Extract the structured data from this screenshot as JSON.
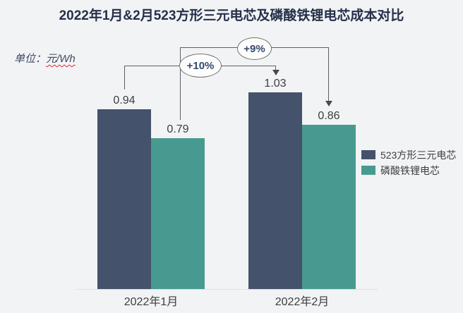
{
  "title": "2022年1月&2月523方形三元电芯及磷酸铁锂电芯成本对比",
  "unit": {
    "prefix": "单位：",
    "text": "元/Wh"
  },
  "chart_data": {
    "type": "bar",
    "title": "2022年1月&2月523方形三元电芯及磷酸铁锂电芯成本对比",
    "unit": "元/Wh",
    "categories": [
      "2022年1月",
      "2022年2月"
    ],
    "series": [
      {
        "name": "523方形三元电芯",
        "color": "#45526B",
        "values": [
          0.94,
          1.03
        ]
      },
      {
        "name": "磷酸铁锂电芯",
        "color": "#489A90",
        "values": [
          0.79,
          0.86
        ]
      }
    ],
    "annotations": [
      {
        "label": "+10%",
        "series": "523方形三元电芯",
        "from": "2022年1月",
        "to": "2022年2月"
      },
      {
        "label": "+9%",
        "series": "磷酸铁锂电芯",
        "from": "2022年1月",
        "to": "2022年2月"
      }
    ],
    "value_labels": true,
    "gridlines": false,
    "legend_position": "right",
    "ylim": [
      0,
      1.1
    ],
    "background_color": "#F2F3F5",
    "accent_text_color": "#243049"
  }
}
